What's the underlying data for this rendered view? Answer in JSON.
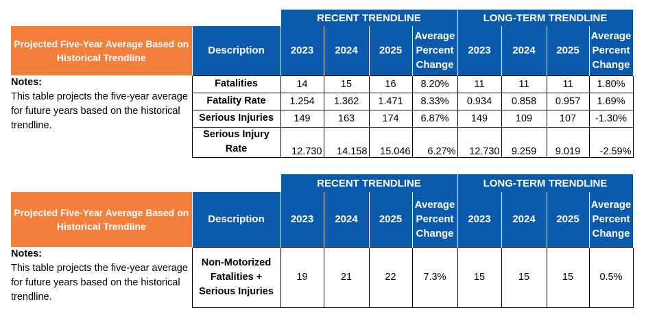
{
  "group_headers": [
    "RECENT TRENDLINE",
    "LONG-TERM TRENDLINE"
  ],
  "table1": {
    "title": "Projected Five-Year Average Based on Historical Trendline",
    "columns": [
      "Description",
      "2023",
      "2024",
      "2025",
      "Average Percent Change",
      "2023",
      "2024",
      "2025",
      "Average Percent Change"
    ],
    "notes_label": "Notes:",
    "notes_text": "This table projects the five-year average for future years based on the historical trendline.",
    "rows": [
      {
        "description": "Fatalities",
        "values": [
          "14",
          "15",
          "16",
          "8.20%",
          "11",
          "11",
          "11",
          "1.80%"
        ]
      },
      {
        "description": "Fatality Rate",
        "values": [
          "1.254",
          "1.362",
          "1.471",
          "8.33%",
          "0.934",
          "0.858",
          "0.957",
          "1.69%"
        ]
      },
      {
        "description": "Serious Injuries",
        "values": [
          "149",
          "163",
          "174",
          "6.87%",
          "149",
          "109",
          "107",
          "-1.30%"
        ]
      },
      {
        "description": "Serious Injury Rate",
        "values": [
          "12.730",
          "14.158",
          "15.046",
          "6.27%",
          "12.730",
          "9.259",
          "9.019",
          "-2.59%"
        ]
      }
    ]
  },
  "table2": {
    "title": "Projected Five-Year Average Based on Historical Trendline",
    "columns": [
      "Description",
      "2023",
      "2024",
      "2025",
      "Average Percent Change",
      "2023",
      "2024",
      "2025",
      "Average Percent Change"
    ],
    "notes_label": "Notes:",
    "notes_text": "This table projects the five-year average for future years based on the historical trendline.",
    "rows": [
      {
        "description": "Non-Motorized Fatalities + Serious Injuries",
        "values": [
          "19",
          "21",
          "22",
          "7.3%",
          "15",
          "15",
          "15",
          "0.5%"
        ]
      }
    ]
  }
}
